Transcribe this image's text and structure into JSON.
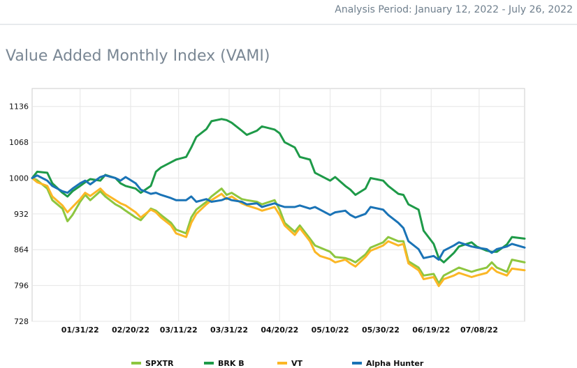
{
  "header": {
    "analysis_period": "Analysis Period: January 12, 2022 - July 26, 2022",
    "title": "Value Added Monthly Index (VAMI)"
  },
  "colors": {
    "SPXTR": "#8dc63f",
    "BRK B": "#1e9a48",
    "VT": "#fbb726",
    "Alpha Hunter": "#1a73b6",
    "grid": "#e6e6e6",
    "frame": "#cccccc"
  },
  "chart_data": {
    "type": "line",
    "title": "",
    "xlabel": "",
    "ylabel": "",
    "ylim": [
      728,
      1170
    ],
    "yticks": [
      728,
      796,
      864,
      932,
      1000,
      1068,
      1136
    ],
    "xlim": [
      "2022-01-12",
      "2022-07-26"
    ],
    "xticks": [
      "01/31/22",
      "02/20/22",
      "03/11/22",
      "03/31/22",
      "04/20/22",
      "05/10/22",
      "05/30/22",
      "06/19/22",
      "07/08/22"
    ],
    "xtick_dates": [
      "2022-01-31",
      "2022-02-20",
      "2022-03-11",
      "2022-03-31",
      "2022-04-20",
      "2022-05-10",
      "2022-05-30",
      "2022-06-19",
      "2022-07-08"
    ],
    "grid": true,
    "legend_position": "bottom",
    "series": [
      {
        "name": "SPXTR",
        "x": [
          "2022-01-12",
          "2022-01-14",
          "2022-01-18",
          "2022-01-20",
          "2022-01-24",
          "2022-01-26",
          "2022-01-28",
          "2022-01-31",
          "2022-02-02",
          "2022-02-04",
          "2022-02-08",
          "2022-02-10",
          "2022-02-14",
          "2022-02-16",
          "2022-02-18",
          "2022-02-22",
          "2022-02-24",
          "2022-02-28",
          "2022-03-02",
          "2022-03-04",
          "2022-03-08",
          "2022-03-10",
          "2022-03-14",
          "2022-03-16",
          "2022-03-18",
          "2022-03-22",
          "2022-03-24",
          "2022-03-28",
          "2022-03-30",
          "2022-04-01",
          "2022-04-05",
          "2022-04-07",
          "2022-04-11",
          "2022-04-13",
          "2022-04-18",
          "2022-04-20",
          "2022-04-22",
          "2022-04-26",
          "2022-04-28",
          "2022-05-02",
          "2022-05-04",
          "2022-05-06",
          "2022-05-10",
          "2022-05-12",
          "2022-05-16",
          "2022-05-18",
          "2022-05-20",
          "2022-05-24",
          "2022-05-26",
          "2022-05-31",
          "2022-06-02",
          "2022-06-06",
          "2022-06-08",
          "2022-06-10",
          "2022-06-14",
          "2022-06-16",
          "2022-06-20",
          "2022-06-22",
          "2022-06-24",
          "2022-06-28",
          "2022-06-30",
          "2022-07-05",
          "2022-07-07",
          "2022-07-11",
          "2022-07-13",
          "2022-07-15",
          "2022-07-19",
          "2022-07-21",
          "2022-07-26"
        ],
        "values": [
          1000,
          996,
          980,
          958,
          942,
          918,
          930,
          955,
          968,
          958,
          975,
          965,
          950,
          945,
          938,
          925,
          920,
          942,
          938,
          930,
          915,
          902,
          895,
          925,
          940,
          955,
          965,
          980,
          968,
          972,
          960,
          958,
          955,
          950,
          958,
          940,
          915,
          898,
          910,
          885,
          872,
          868,
          860,
          850,
          848,
          845,
          840,
          855,
          868,
          878,
          888,
          880,
          880,
          842,
          830,
          815,
          818,
          800,
          815,
          825,
          830,
          822,
          825,
          830,
          840,
          830,
          822,
          845,
          840
        ]
      },
      {
        "name": "BRK B",
        "x": [
          "2022-01-12",
          "2022-01-14",
          "2022-01-18",
          "2022-01-20",
          "2022-01-24",
          "2022-01-26",
          "2022-01-28",
          "2022-01-31",
          "2022-02-02",
          "2022-02-04",
          "2022-02-08",
          "2022-02-10",
          "2022-02-14",
          "2022-02-16",
          "2022-02-18",
          "2022-02-22",
          "2022-02-24",
          "2022-02-28",
          "2022-03-02",
          "2022-03-04",
          "2022-03-08",
          "2022-03-10",
          "2022-03-14",
          "2022-03-16",
          "2022-03-18",
          "2022-03-22",
          "2022-03-24",
          "2022-03-28",
          "2022-03-30",
          "2022-04-01",
          "2022-04-05",
          "2022-04-07",
          "2022-04-11",
          "2022-04-13",
          "2022-04-18",
          "2022-04-20",
          "2022-04-22",
          "2022-04-26",
          "2022-04-28",
          "2022-05-02",
          "2022-05-04",
          "2022-05-06",
          "2022-05-10",
          "2022-05-12",
          "2022-05-16",
          "2022-05-18",
          "2022-05-20",
          "2022-05-24",
          "2022-05-26",
          "2022-05-31",
          "2022-06-02",
          "2022-06-06",
          "2022-06-08",
          "2022-06-10",
          "2022-06-14",
          "2022-06-16",
          "2022-06-20",
          "2022-06-22",
          "2022-06-24",
          "2022-06-28",
          "2022-06-30",
          "2022-07-05",
          "2022-07-07",
          "2022-07-11",
          "2022-07-13",
          "2022-07-15",
          "2022-07-19",
          "2022-07-21",
          "2022-07-26"
        ],
        "values": [
          1000,
          1012,
          1010,
          990,
          972,
          965,
          975,
          985,
          992,
          998,
          995,
          1006,
          1000,
          990,
          985,
          980,
          972,
          985,
          1012,
          1020,
          1030,
          1035,
          1040,
          1058,
          1078,
          1093,
          1108,
          1112,
          1110,
          1105,
          1090,
          1082,
          1090,
          1098,
          1092,
          1085,
          1068,
          1058,
          1040,
          1035,
          1010,
          1005,
          995,
          1002,
          985,
          978,
          968,
          980,
          1000,
          995,
          985,
          970,
          968,
          950,
          940,
          900,
          875,
          848,
          840,
          858,
          870,
          878,
          870,
          862,
          860,
          860,
          874,
          888,
          885
        ]
      },
      {
        "name": "VT",
        "x": [
          "2022-01-12",
          "2022-01-14",
          "2022-01-18",
          "2022-01-20",
          "2022-01-24",
          "2022-01-26",
          "2022-01-28",
          "2022-01-31",
          "2022-02-02",
          "2022-02-04",
          "2022-02-08",
          "2022-02-10",
          "2022-02-14",
          "2022-02-16",
          "2022-02-18",
          "2022-02-22",
          "2022-02-24",
          "2022-02-28",
          "2022-03-02",
          "2022-03-04",
          "2022-03-08",
          "2022-03-10",
          "2022-03-14",
          "2022-03-16",
          "2022-03-18",
          "2022-03-22",
          "2022-03-24",
          "2022-03-28",
          "2022-03-30",
          "2022-04-01",
          "2022-04-05",
          "2022-04-07",
          "2022-04-11",
          "2022-04-13",
          "2022-04-18",
          "2022-04-20",
          "2022-04-22",
          "2022-04-26",
          "2022-04-28",
          "2022-05-02",
          "2022-05-04",
          "2022-05-06",
          "2022-05-10",
          "2022-05-12",
          "2022-05-16",
          "2022-05-18",
          "2022-05-20",
          "2022-05-24",
          "2022-05-26",
          "2022-05-31",
          "2022-06-02",
          "2022-06-06",
          "2022-06-08",
          "2022-06-10",
          "2022-06-14",
          "2022-06-16",
          "2022-06-20",
          "2022-06-22",
          "2022-06-24",
          "2022-06-28",
          "2022-06-30",
          "2022-07-05",
          "2022-07-07",
          "2022-07-11",
          "2022-07-13",
          "2022-07-15",
          "2022-07-19",
          "2022-07-21",
          "2022-07-26"
        ],
        "values": [
          1000,
          992,
          985,
          965,
          948,
          935,
          945,
          960,
          972,
          966,
          980,
          970,
          958,
          952,
          948,
          935,
          925,
          940,
          935,
          925,
          910,
          895,
          888,
          915,
          932,
          950,
          958,
          970,
          960,
          965,
          952,
          948,
          942,
          938,
          945,
          930,
          910,
          892,
          905,
          880,
          860,
          852,
          846,
          840,
          845,
          838,
          832,
          850,
          862,
          872,
          880,
          872,
          875,
          838,
          825,
          808,
          812,
          795,
          808,
          815,
          820,
          812,
          815,
          820,
          830,
          822,
          815,
          828,
          825
        ]
      },
      {
        "name": "Alpha Hunter",
        "x": [
          "2022-01-12",
          "2022-01-14",
          "2022-01-18",
          "2022-01-20",
          "2022-01-24",
          "2022-01-26",
          "2022-01-28",
          "2022-01-31",
          "2022-02-02",
          "2022-02-04",
          "2022-02-08",
          "2022-02-10",
          "2022-02-14",
          "2022-02-16",
          "2022-02-18",
          "2022-02-22",
          "2022-02-24",
          "2022-02-28",
          "2022-03-02",
          "2022-03-04",
          "2022-03-08",
          "2022-03-10",
          "2022-03-14",
          "2022-03-16",
          "2022-03-18",
          "2022-03-22",
          "2022-03-24",
          "2022-03-28",
          "2022-03-30",
          "2022-04-01",
          "2022-04-05",
          "2022-04-07",
          "2022-04-11",
          "2022-04-13",
          "2022-04-18",
          "2022-04-20",
          "2022-04-22",
          "2022-04-26",
          "2022-04-28",
          "2022-05-02",
          "2022-05-04",
          "2022-05-06",
          "2022-05-10",
          "2022-05-12",
          "2022-05-16",
          "2022-05-18",
          "2022-05-20",
          "2022-05-24",
          "2022-05-26",
          "2022-05-31",
          "2022-06-02",
          "2022-06-06",
          "2022-06-08",
          "2022-06-10",
          "2022-06-14",
          "2022-06-16",
          "2022-06-20",
          "2022-06-22",
          "2022-06-24",
          "2022-06-28",
          "2022-06-30",
          "2022-07-05",
          "2022-07-07",
          "2022-07-11",
          "2022-07-13",
          "2022-07-15",
          "2022-07-19",
          "2022-07-21",
          "2022-07-26"
        ],
        "values": [
          1000,
          1005,
          995,
          985,
          975,
          972,
          980,
          990,
          995,
          988,
          1002,
          1005,
          1000,
          995,
          1002,
          990,
          978,
          970,
          972,
          968,
          962,
          958,
          958,
          965,
          955,
          960,
          955,
          958,
          962,
          958,
          955,
          950,
          952,
          945,
          952,
          948,
          945,
          945,
          948,
          942,
          945,
          940,
          930,
          935,
          938,
          930,
          925,
          932,
          945,
          940,
          930,
          915,
          905,
          880,
          865,
          848,
          852,
          845,
          862,
          872,
          878,
          870,
          868,
          865,
          858,
          865,
          870,
          875,
          868
        ]
      }
    ]
  }
}
